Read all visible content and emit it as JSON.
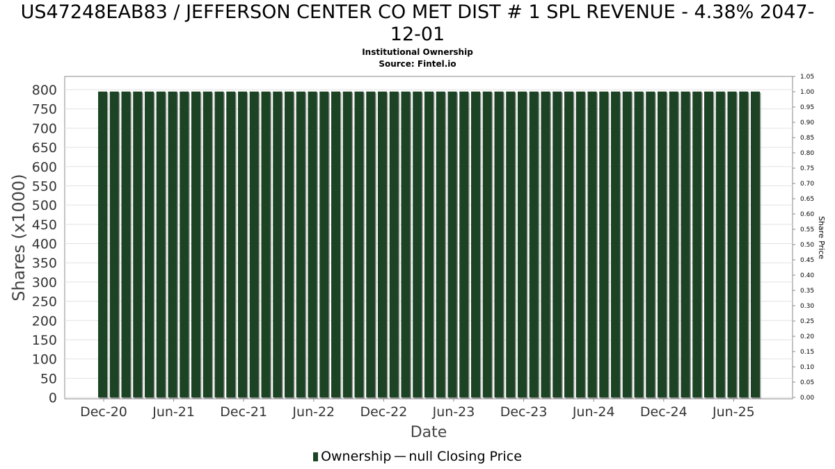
{
  "title_line1": "US47248EAB83 / JEFFERSON CENTER CO MET DIST # 1 SPL REVENUE - 4.38% 2047-",
  "title_line2": "12-01",
  "subtitle1": "Institutional Ownership",
  "subtitle2": "Source: Fintel.io",
  "legend": {
    "ownership": "Ownership",
    "price": "null Closing Price"
  },
  "colors": {
    "bar": "#1c4424",
    "bar_shadow": "#9a9a9a",
    "grid": "#e2e2e2",
    "axis": "#888888"
  },
  "chart_data": {
    "type": "bar",
    "xlabel": "Date",
    "ylabel": "Shares (x1000)",
    "y2label": "Share Price",
    "ylim": [
      0,
      800
    ],
    "yticks": [
      0,
      50,
      100,
      150,
      200,
      250,
      300,
      350,
      400,
      450,
      500,
      550,
      600,
      650,
      700,
      750,
      800
    ],
    "y2lim": [
      0,
      1.05
    ],
    "y2ticks": [
      "0.00",
      "0.05",
      "0.10",
      "0.15",
      "0.20",
      "0.25",
      "0.30",
      "0.35",
      "0.40",
      "0.45",
      "0.50",
      "0.55",
      "0.60",
      "0.65",
      "0.70",
      "0.75",
      "0.80",
      "0.85",
      "0.90",
      "0.95",
      "1.00",
      "1.05"
    ],
    "x_tick_labels": [
      "Dec-20",
      "Jun-21",
      "Dec-21",
      "Jun-22",
      "Dec-22",
      "Jun-23",
      "Dec-23",
      "Jun-24",
      "Dec-24",
      "Jun-25"
    ],
    "grid": true,
    "legend_position": "bottom-center",
    "series": [
      {
        "name": "Ownership",
        "values": [
          795,
          795,
          795,
          795,
          795,
          795,
          795,
          795,
          795,
          795,
          795,
          795,
          795,
          795,
          795,
          795,
          795,
          795,
          795,
          795,
          795,
          795,
          795,
          795,
          795,
          795,
          795,
          795,
          795,
          795,
          795,
          795,
          795,
          795,
          795,
          795,
          795,
          795,
          795,
          795,
          795,
          795,
          795,
          795,
          795,
          795,
          795,
          795,
          795,
          795,
          795,
          795,
          795,
          795,
          795,
          795,
          795
        ]
      }
    ]
  }
}
